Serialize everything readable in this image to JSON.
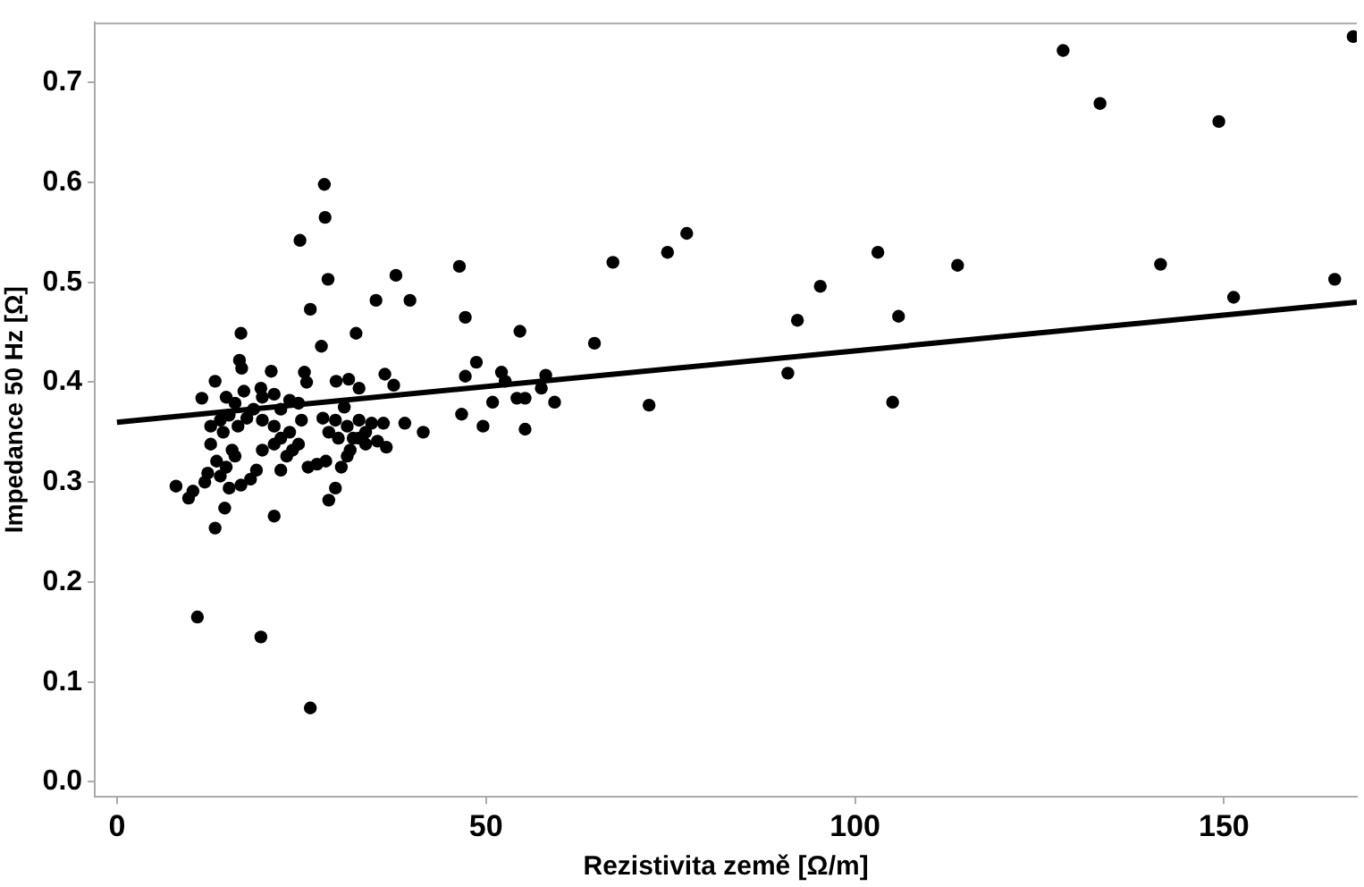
{
  "chart_data": {
    "type": "scatter",
    "xlabel": "Rezistivita země [Ω/m]",
    "ylabel": "Impedance 50 Hz [Ω]",
    "xlim": [
      -3,
      168
    ],
    "ylim": [
      -0.015,
      0.76
    ],
    "xticks": [
      0,
      50,
      100,
      150
    ],
    "yticks": [
      {
        "value": 0,
        "label": "0.0"
      },
      0.1,
      0.2,
      0.3,
      0.4,
      0.5,
      0.6,
      0.7
    ],
    "grid": false,
    "legend": false,
    "series": [
      {
        "type": "scatter",
        "marker": "circle",
        "color": "#000000",
        "x": [
          28.1,
          28.2,
          24.8,
          28.6,
          37.8,
          35.1,
          39.7,
          26.2,
          16.8,
          32.4,
          27.7,
          16.6,
          16.9,
          20.9,
          25.4,
          25.7,
          13.3,
          29.7,
          31.4,
          36.3,
          37.5,
          11.5,
          19.5,
          32.8,
          30.8,
          14.8,
          16.0,
          17.2,
          18.5,
          19.7,
          21.3,
          22.2,
          15.2,
          17.6,
          19.7,
          21.3,
          16.4,
          14.0,
          23.4,
          24.6,
          25.0,
          27.9,
          29.6,
          31.2,
          32.8,
          28.7,
          30.0,
          32.0,
          34.5,
          36.1,
          39.0,
          41.5,
          33.7,
          35.3,
          36.5,
          12.7,
          14.4,
          15.6,
          12.7,
          13.5,
          14.8,
          12.3,
          14.0,
          11.9,
          15.2,
          16.8,
          18.1,
          18.9,
          19.7,
          21.3,
          22.2,
          23.4,
          23.0,
          23.8,
          24.6,
          22.2,
          25.9,
          27.1,
          28.3,
          30.4,
          31.6,
          32.8,
          33.7,
          29.6,
          28.7,
          31.2,
          10.3,
          9.7,
          8.0,
          14.6,
          13.3,
          21.3,
          16.0,
          10.9,
          19.5,
          26.2,
          46.4,
          77.2,
          74.6,
          67.2,
          47.2,
          54.6,
          64.7,
          48.7,
          47.2,
          52.1,
          58.1,
          52.6,
          57.5,
          54.2,
          55.3,
          50.9,
          59.3,
          46.7,
          49.6,
          55.3,
          72.1,
          90.9,
          92.2,
          95.3,
          128.2,
          167.5,
          133.2,
          149.3,
          103.1,
          113.9,
          141.4,
          105.9,
          151.3,
          165.0,
          105.1
        ],
        "values": [
          0.598,
          0.565,
          0.542,
          0.503,
          0.507,
          0.482,
          0.482,
          0.473,
          0.449,
          0.449,
          0.436,
          0.422,
          0.414,
          0.411,
          0.41,
          0.4,
          0.401,
          0.401,
          0.403,
          0.408,
          0.397,
          0.384,
          0.394,
          0.394,
          0.375,
          0.385,
          0.379,
          0.391,
          0.373,
          0.385,
          0.388,
          0.373,
          0.367,
          0.364,
          0.362,
          0.356,
          0.356,
          0.362,
          0.382,
          0.379,
          0.362,
          0.364,
          0.362,
          0.356,
          0.362,
          0.35,
          0.344,
          0.344,
          0.359,
          0.359,
          0.359,
          0.35,
          0.35,
          0.341,
          0.335,
          0.356,
          0.35,
          0.332,
          0.338,
          0.321,
          0.315,
          0.309,
          0.306,
          0.3,
          0.294,
          0.297,
          0.303,
          0.312,
          0.332,
          0.338,
          0.344,
          0.35,
          0.326,
          0.332,
          0.338,
          0.312,
          0.315,
          0.318,
          0.321,
          0.315,
          0.332,
          0.344,
          0.338,
          0.294,
          0.282,
          0.326,
          0.291,
          0.284,
          0.296,
          0.274,
          0.254,
          0.266,
          0.326,
          0.165,
          0.145,
          0.074,
          0.516,
          0.549,
          0.53,
          0.52,
          0.465,
          0.451,
          0.439,
          0.42,
          0.406,
          0.41,
          0.407,
          0.401,
          0.394,
          0.384,
          0.384,
          0.38,
          0.38,
          0.368,
          0.356,
          0.353,
          0.377,
          0.409,
          0.462,
          0.496,
          0.732,
          0.746,
          0.679,
          0.661,
          0.53,
          0.517,
          0.518,
          0.466,
          0.485,
          0.503,
          0.38
        ]
      },
      {
        "type": "line",
        "marker": "none",
        "line_style": "solid",
        "color": "#000000",
        "x": [
          0,
          168
        ],
        "values": [
          0.36,
          0.48
        ]
      }
    ]
  }
}
